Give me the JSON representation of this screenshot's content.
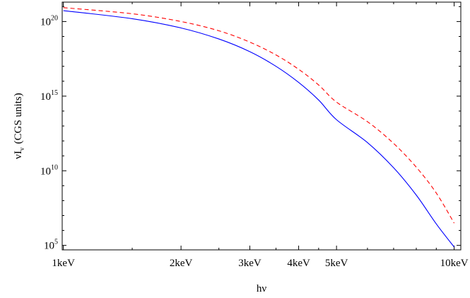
{
  "chart_data": {
    "type": "line",
    "title": "",
    "xlabel": "hν",
    "ylabel": "νI",
    "ylabel_sub": "ν",
    "ylabel_units": "(CGS units)",
    "x_scale": "log",
    "y_scale": "log",
    "x_unit": "keV",
    "xlim": [
      0.993,
      10.4
    ],
    "ylim_exponent": [
      4.7,
      21.3
    ],
    "x_ticks": [
      {
        "value": 1,
        "label": "1keV"
      },
      {
        "value": 2,
        "label": "2keV"
      },
      {
        "value": 3,
        "label": "3keV"
      },
      {
        "value": 4,
        "label": "4keV"
      },
      {
        "value": 5,
        "label": "5keV"
      },
      {
        "value": 10,
        "label": "10keV"
      }
    ],
    "y_ticks": [
      {
        "exponent": 5,
        "base": "10",
        "exp_label": "5"
      },
      {
        "exponent": 10,
        "base": "10",
        "exp_label": "10"
      },
      {
        "exponent": 15,
        "base": "10",
        "exp_label": "15"
      },
      {
        "exponent": 20,
        "base": "10",
        "exp_label": "20"
      }
    ],
    "grid": false,
    "series": [
      {
        "color": "#0000ff",
        "dash": "solid",
        "x": [
          1,
          1.5,
          2,
          2.5,
          3,
          3.5,
          4,
          4.5,
          5,
          6,
          7,
          8,
          9,
          10
        ],
        "log10_y": [
          20.73,
          20.19,
          19.57,
          18.83,
          17.98,
          17.0,
          15.92,
          14.74,
          13.42,
          11.89,
          10.2,
          8.37,
          6.44,
          4.89
        ]
      },
      {
        "color": "#ff0000",
        "dash": "dashed",
        "x": [
          1,
          1.5,
          2,
          2.5,
          3,
          3.5,
          4,
          4.5,
          5,
          6,
          7,
          8,
          9,
          10
        ],
        "log10_y": [
          20.93,
          20.52,
          20.0,
          19.38,
          18.62,
          17.76,
          16.8,
          15.75,
          14.6,
          13.29,
          11.83,
          10.24,
          8.51,
          6.49
        ]
      }
    ]
  }
}
